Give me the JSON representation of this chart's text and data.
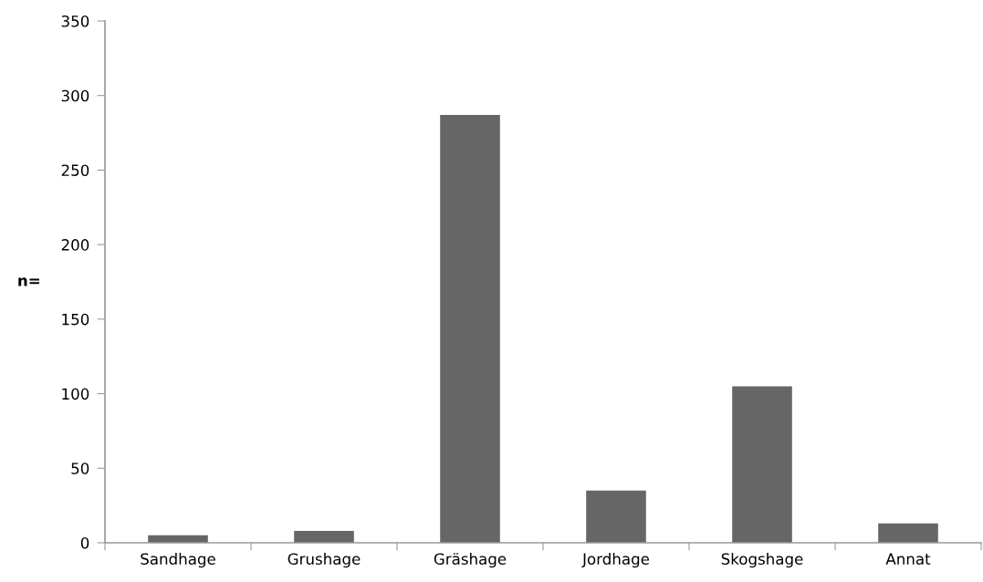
{
  "chart_data": {
    "type": "bar",
    "ylabel": "n=",
    "categories": [
      "Sandhage",
      "Grushage",
      "Gräshage",
      "Jordhage",
      "Skogshage",
      "Annat"
    ],
    "values": [
      5,
      8,
      287,
      35,
      105,
      13
    ],
    "color": "#666666",
    "ylim": [
      0,
      350
    ],
    "yticks": [
      0,
      50,
      100,
      150,
      200,
      250,
      300,
      350
    ],
    "grid": false,
    "legend": false
  }
}
